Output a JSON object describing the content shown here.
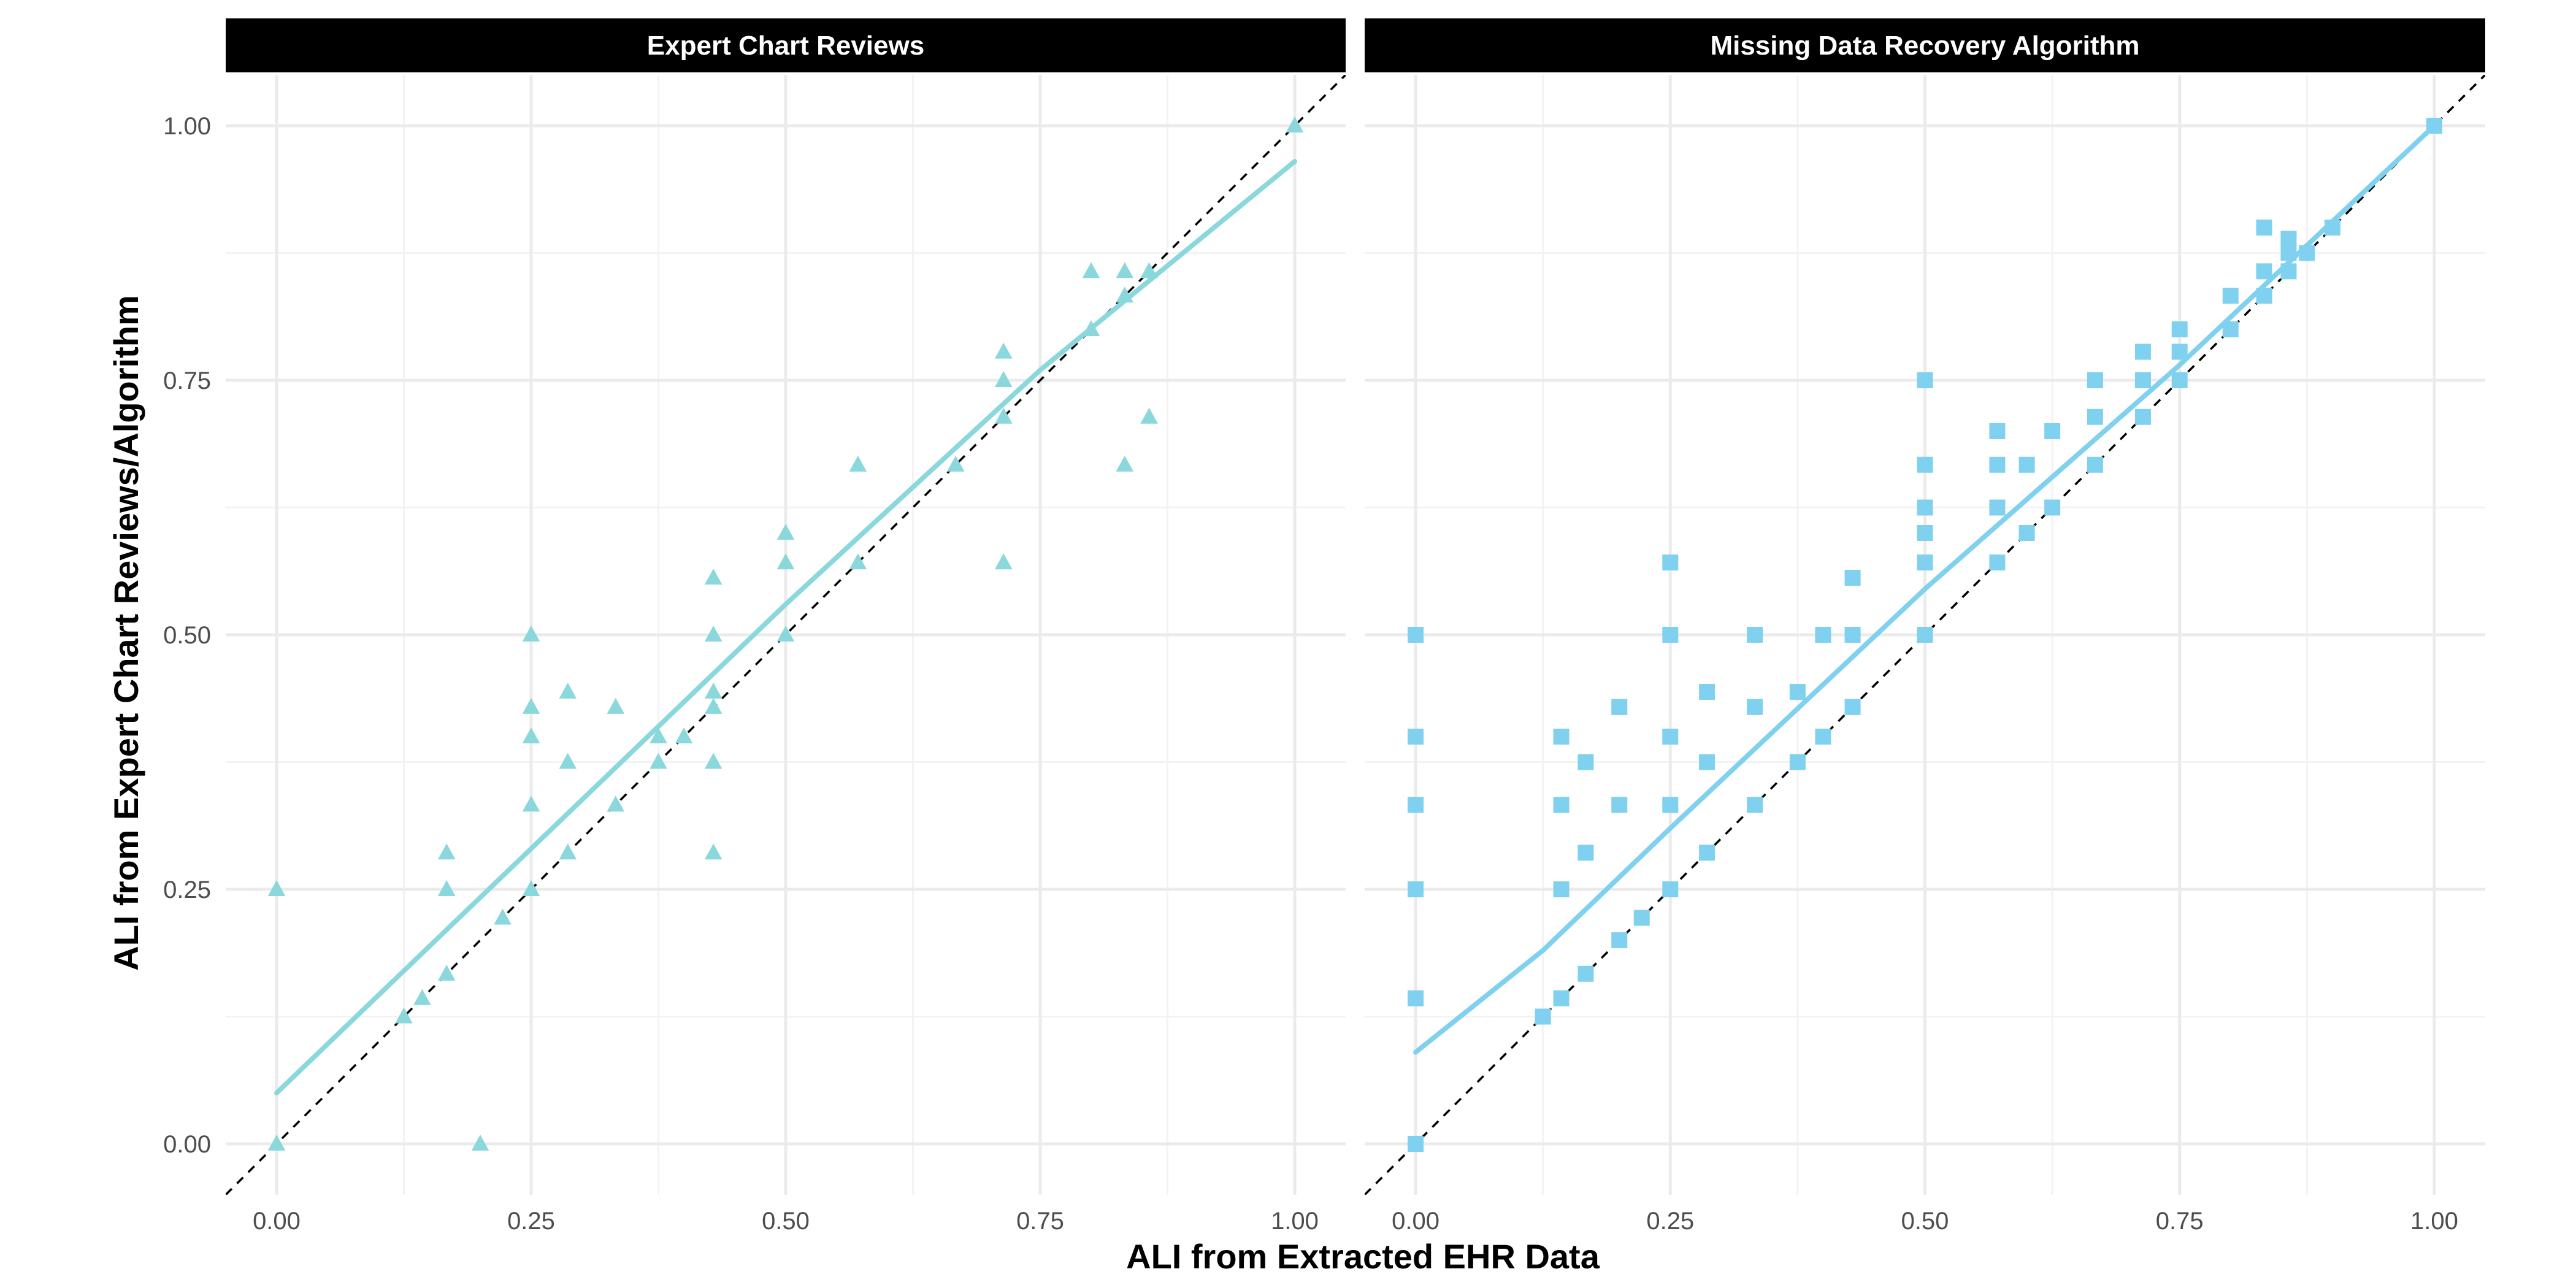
{
  "chart_data": {
    "type": "scatter",
    "xlabel": "ALI from Extracted EHR Data",
    "ylabel": "ALI from Expert Chart Reviews/Algorithm",
    "xlim": [
      -0.05,
      1.05
    ],
    "ylim": [
      -0.05,
      1.05
    ],
    "x_ticks": [
      "0.00",
      "0.25",
      "0.50",
      "0.75",
      "1.00"
    ],
    "y_ticks": [
      "0.00",
      "0.25",
      "0.50",
      "0.75",
      "1.00"
    ],
    "grid": true,
    "reference_line": "y = x (dashed)",
    "panels": [
      {
        "title": "Expert Chart Reviews",
        "marker": "triangle",
        "color": "#8bd8dc",
        "points": [
          [
            0,
            0
          ],
          [
            0,
            0.25
          ],
          [
            0.2,
            0
          ],
          [
            0.125,
            0.125
          ],
          [
            0.143,
            0.143
          ],
          [
            0.167,
            0.167
          ],
          [
            0.167,
            0.25
          ],
          [
            0.167,
            0.286
          ],
          [
            0.222,
            0.222
          ],
          [
            0.25,
            0.25
          ],
          [
            0.25,
            0.333
          ],
          [
            0.25,
            0.4
          ],
          [
            0.25,
            0.429
          ],
          [
            0.25,
            0.5
          ],
          [
            0.286,
            0.286
          ],
          [
            0.286,
            0.375
          ],
          [
            0.286,
            0.444
          ],
          [
            0.333,
            0.333
          ],
          [
            0.333,
            0.429
          ],
          [
            0.375,
            0.375
          ],
          [
            0.375,
            0.4
          ],
          [
            0.4,
            0.4
          ],
          [
            0.429,
            0.286
          ],
          [
            0.429,
            0.375
          ],
          [
            0.429,
            0.429
          ],
          [
            0.429,
            0.444
          ],
          [
            0.429,
            0.5
          ],
          [
            0.429,
            0.556
          ],
          [
            0.5,
            0.5
          ],
          [
            0.5,
            0.571
          ],
          [
            0.5,
            0.6
          ],
          [
            0.571,
            0.571
          ],
          [
            0.571,
            0.667
          ],
          [
            0.667,
            0.667
          ],
          [
            0.714,
            0.571
          ],
          [
            0.714,
            0.714
          ],
          [
            0.714,
            0.75
          ],
          [
            0.714,
            0.778
          ],
          [
            0.8,
            0.8
          ],
          [
            0.8,
            0.857
          ],
          [
            0.833,
            0.667
          ],
          [
            0.833,
            0.833
          ],
          [
            0.833,
            0.857
          ],
          [
            0.857,
            0.714
          ],
          [
            0.857,
            0.857
          ],
          [
            1,
            1
          ]
        ],
        "smooth": [
          [
            0,
            0.05
          ],
          [
            0.25,
            0.29
          ],
          [
            0.5,
            0.53
          ],
          [
            0.75,
            0.76
          ],
          [
            1,
            0.965
          ]
        ]
      },
      {
        "title": "Missing Data Recovery Algorithm",
        "marker": "square",
        "color": "#7fd1ef",
        "points": [
          [
            0,
            0
          ],
          [
            0,
            0.143
          ],
          [
            0,
            0.25
          ],
          [
            0,
            0.333
          ],
          [
            0,
            0.4
          ],
          [
            0,
            0.5
          ],
          [
            0.125,
            0.125
          ],
          [
            0.143,
            0.143
          ],
          [
            0.143,
            0.25
          ],
          [
            0.143,
            0.333
          ],
          [
            0.143,
            0.4
          ],
          [
            0.167,
            0.167
          ],
          [
            0.167,
            0.286
          ],
          [
            0.167,
            0.375
          ],
          [
            0.2,
            0.2
          ],
          [
            0.2,
            0.333
          ],
          [
            0.2,
            0.429
          ],
          [
            0.222,
            0.222
          ],
          [
            0.25,
            0.25
          ],
          [
            0.25,
            0.333
          ],
          [
            0.25,
            0.4
          ],
          [
            0.25,
            0.5
          ],
          [
            0.25,
            0.571
          ],
          [
            0.286,
            0.286
          ],
          [
            0.286,
            0.375
          ],
          [
            0.286,
            0.444
          ],
          [
            0.333,
            0.333
          ],
          [
            0.333,
            0.429
          ],
          [
            0.333,
            0.5
          ],
          [
            0.375,
            0.375
          ],
          [
            0.375,
            0.444
          ],
          [
            0.4,
            0.4
          ],
          [
            0.4,
            0.5
          ],
          [
            0.429,
            0.429
          ],
          [
            0.429,
            0.5
          ],
          [
            0.429,
            0.556
          ],
          [
            0.5,
            0.5
          ],
          [
            0.5,
            0.571
          ],
          [
            0.5,
            0.6
          ],
          [
            0.5,
            0.625
          ],
          [
            0.5,
            0.667
          ],
          [
            0.5,
            0.75
          ],
          [
            0.571,
            0.571
          ],
          [
            0.571,
            0.625
          ],
          [
            0.571,
            0.667
          ],
          [
            0.571,
            0.7
          ],
          [
            0.6,
            0.6
          ],
          [
            0.6,
            0.667
          ],
          [
            0.625,
            0.625
          ],
          [
            0.625,
            0.7
          ],
          [
            0.667,
            0.667
          ],
          [
            0.667,
            0.714
          ],
          [
            0.667,
            0.75
          ],
          [
            0.714,
            0.714
          ],
          [
            0.714,
            0.75
          ],
          [
            0.714,
            0.778
          ],
          [
            0.75,
            0.75
          ],
          [
            0.75,
            0.778
          ],
          [
            0.75,
            0.8
          ],
          [
            0.8,
            0.8
          ],
          [
            0.8,
            0.833
          ],
          [
            0.833,
            0.833
          ],
          [
            0.833,
            0.857
          ],
          [
            0.833,
            0.9
          ],
          [
            0.857,
            0.857
          ],
          [
            0.857,
            0.875
          ],
          [
            0.857,
            0.889
          ],
          [
            0.875,
            0.875
          ],
          [
            0.9,
            0.9
          ],
          [
            1,
            1
          ]
        ],
        "smooth": [
          [
            0,
            0.09
          ],
          [
            0.125,
            0.19
          ],
          [
            0.25,
            0.31
          ],
          [
            0.5,
            0.545
          ],
          [
            0.75,
            0.765
          ],
          [
            1,
            1
          ]
        ]
      }
    ]
  }
}
